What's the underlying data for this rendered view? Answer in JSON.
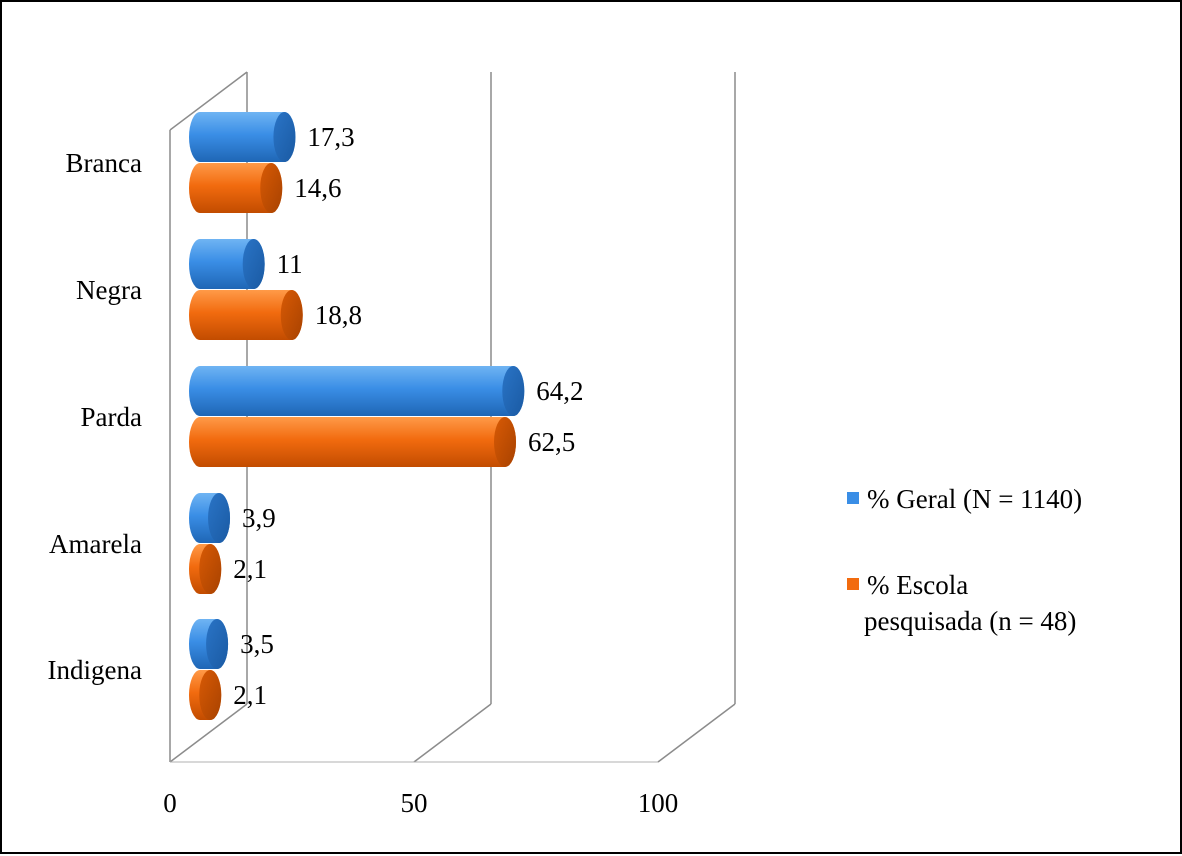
{
  "chart_data": {
    "type": "bar",
    "orientation": "horizontal",
    "style": "3d-cylinder",
    "title": "",
    "xlabel": "",
    "ylabel": "",
    "categories": [
      "Branca",
      "Negra",
      "Parda",
      "Amarela",
      "Indigena"
    ],
    "series": [
      {
        "name": "% Geral (N = 1140)",
        "values": [
          17.3,
          11,
          64.2,
          3.9,
          3.5
        ],
        "labels": [
          "17,3",
          "11",
          "64,2",
          "3,9",
          "3,5"
        ],
        "color": "#3a8ee6"
      },
      {
        "name": "% Escola pesquisada (n = 48)",
        "values": [
          14.6,
          18.8,
          62.5,
          2.1,
          2.1
        ],
        "labels": [
          "14,6",
          "18,8",
          "62,5",
          "2,1",
          "2,1"
        ],
        "color": "#f26b0f"
      }
    ],
    "xlim": [
      0,
      100
    ],
    "x_ticks": [
      "0",
      "50",
      "100"
    ],
    "grid": true,
    "legend": "right"
  }
}
